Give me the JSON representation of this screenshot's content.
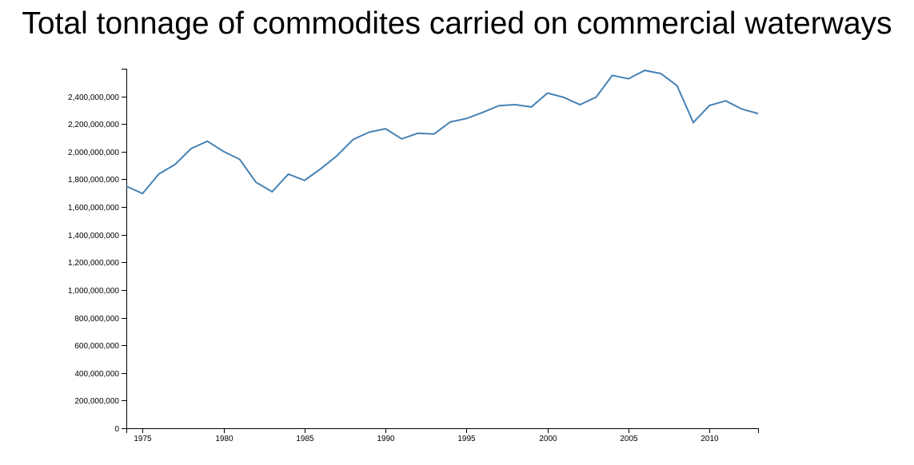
{
  "chart_data": {
    "type": "line",
    "title": "Total tonnage of commodites carried on commercial waterways",
    "xlabel": "",
    "ylabel": "",
    "xlim": [
      1974,
      2013
    ],
    "ylim": [
      0,
      2600000000
    ],
    "x_ticks": [
      1975,
      1980,
      1985,
      1990,
      1995,
      2000,
      2005,
      2010
    ],
    "y_ticks": [
      0,
      200000000,
      400000000,
      600000000,
      800000000,
      1000000000,
      1200000000,
      1400000000,
      1600000000,
      1800000000,
      2000000000,
      2200000000,
      2400000000
    ],
    "y_tick_labels": [
      "0",
      "200,000,000",
      "400,000,000",
      "600,000,000",
      "800,000,000",
      "1,000,000,000",
      "1,200,000,000",
      "1,400,000,000",
      "1,600,000,000",
      "1,800,000,000",
      "2,000,000,000",
      "2,200,000,000",
      "2,400,000,000"
    ],
    "grid": false,
    "color": "#4682b4",
    "x": [
      1974,
      1975,
      1976,
      1977,
      1978,
      1979,
      1980,
      1981,
      1982,
      1983,
      1984,
      1985,
      1986,
      1987,
      1988,
      1989,
      1990,
      1991,
      1992,
      1993,
      1994,
      1995,
      1996,
      1997,
      1998,
      1999,
      2000,
      2001,
      2002,
      2003,
      2004,
      2005,
      2006,
      2007,
      2008,
      2009,
      2010,
      2011,
      2012,
      2013
    ],
    "values": [
      1750000000,
      1697000000,
      1838000000,
      1907000000,
      2022000000,
      2076000000,
      2002000000,
      1944000000,
      1779000000,
      1710000000,
      1838000000,
      1792000000,
      1876000000,
      1970000000,
      2088000000,
      2141000000,
      2166000000,
      2093000000,
      2133000000,
      2128000000,
      2215000000,
      2240000000,
      2284000000,
      2333000000,
      2340000000,
      2323000000,
      2424000000,
      2393000000,
      2340000000,
      2394000000,
      2552000000,
      2527000000,
      2588000000,
      2565000000,
      2477000000,
      2211000000,
      2334000000,
      2368000000,
      2308000000,
      2276000000
    ]
  }
}
